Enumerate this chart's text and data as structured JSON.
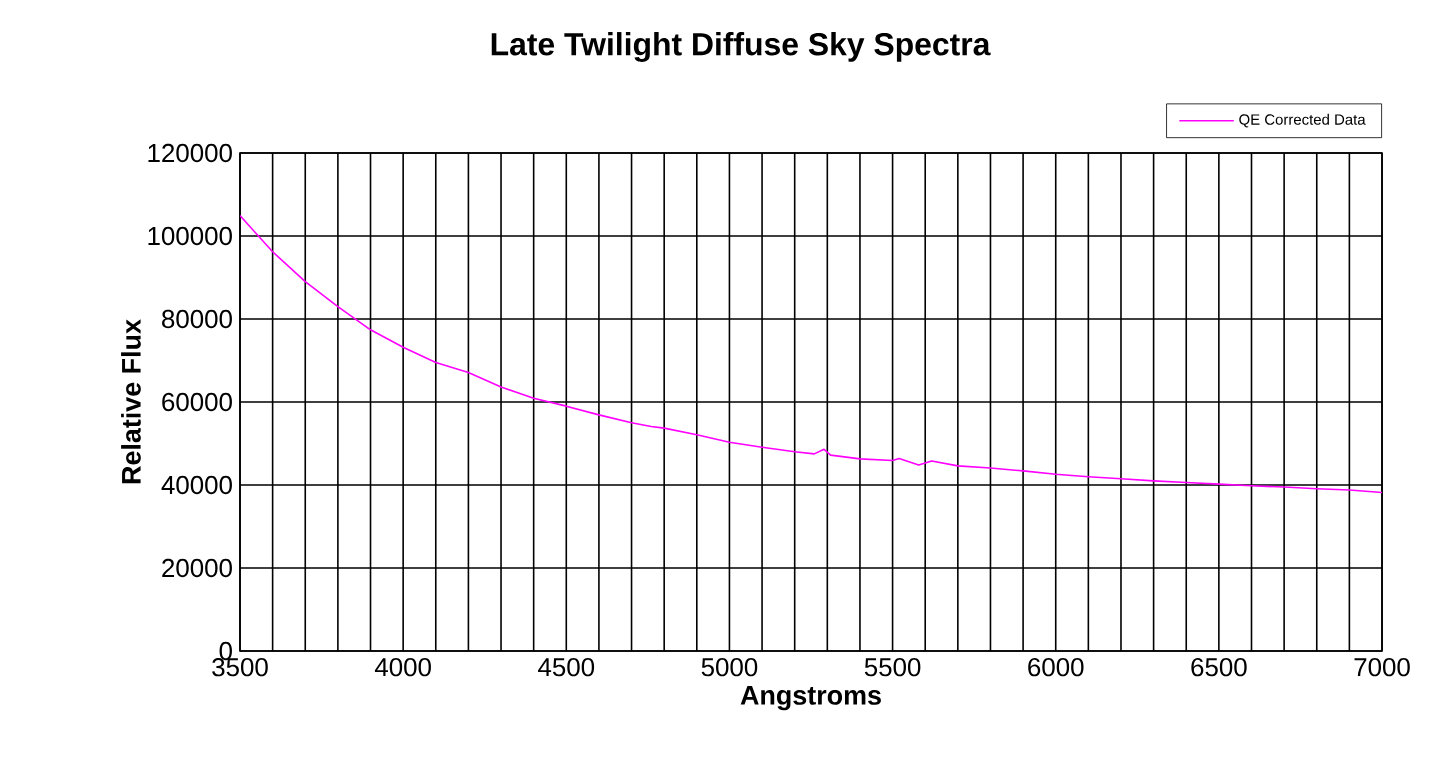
{
  "chart_data": {
    "type": "line",
    "title": "Late Twilight  Diffuse Sky Spectra",
    "xlabel": "Angstroms",
    "ylabel": "Relative Flux",
    "x": [
      3500,
      3600,
      3700,
      3800,
      3900,
      4000,
      4100,
      4200,
      4300,
      4400,
      4500,
      4600,
      4700,
      4760,
      4800,
      4900,
      5000,
      5100,
      5200,
      5260,
      5290,
      5310,
      5400,
      5500,
      5520,
      5580,
      5620,
      5700,
      5800,
      5900,
      6000,
      6100,
      6200,
      6300,
      6400,
      6500,
      6600,
      6700,
      6800,
      6900,
      7000
    ],
    "series": [
      {
        "name": "QE Corrected Data",
        "color": "#ff00ff",
        "values": [
          104900,
          96200,
          89000,
          83000,
          77400,
          73200,
          69500,
          67100,
          63600,
          60900,
          59000,
          56900,
          55000,
          54100,
          53700,
          52100,
          50300,
          49100,
          48000,
          47500,
          48600,
          47200,
          46300,
          45900,
          46400,
          44800,
          45800,
          44600,
          44100,
          43400,
          42600,
          42000,
          41500,
          41000,
          40600,
          40200,
          39800,
          39500,
          39100,
          38800,
          38200
        ]
      }
    ],
    "xlim": [
      3500,
      7000
    ],
    "xticks": [
      3500,
      {
        "value": 3600,
        "label": null
      },
      {
        "value": 3700,
        "label": null
      },
      {
        "value": 3800,
        "label": null
      },
      {
        "value": 3900,
        "label": null
      },
      4000,
      {
        "value": 4100,
        "label": null
      },
      {
        "value": 4200,
        "label": null
      },
      {
        "value": 4300,
        "label": null
      },
      {
        "value": 4400,
        "label": null
      },
      4500,
      {
        "value": 4600,
        "label": null
      },
      {
        "value": 4700,
        "label": null
      },
      {
        "value": 4800,
        "label": null
      },
      {
        "value": 4900,
        "label": null
      },
      5000,
      {
        "value": 5100,
        "label": null
      },
      {
        "value": 5200,
        "label": null
      },
      {
        "value": 5300,
        "label": null
      },
      {
        "value": 5400,
        "label": null
      },
      5500,
      {
        "value": 5600,
        "label": null
      },
      {
        "value": 5700,
        "label": null
      },
      {
        "value": 5800,
        "label": null
      },
      {
        "value": 5900,
        "label": null
      },
      6000,
      {
        "value": 6100,
        "label": null
      },
      {
        "value": 6200,
        "label": null
      },
      {
        "value": 6300,
        "label": null
      },
      {
        "value": 6400,
        "label": null
      },
      6500,
      {
        "value": 6600,
        "label": null
      },
      {
        "value": 6700,
        "label": null
      },
      {
        "value": 6800,
        "label": null
      },
      {
        "value": 6900,
        "label": null
      },
      7000
    ],
    "ylim": [
      0,
      120000
    ],
    "yticks": [
      0,
      20000,
      40000,
      60000,
      80000,
      100000,
      120000
    ],
    "grid": true,
    "legend": "top right",
    "marker": "none"
  }
}
